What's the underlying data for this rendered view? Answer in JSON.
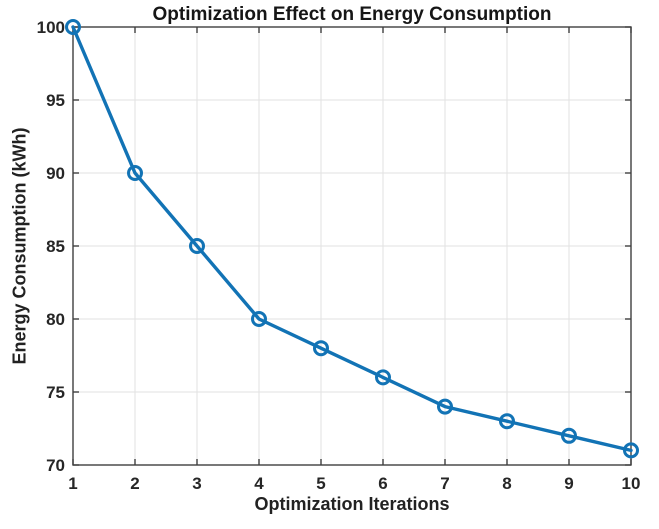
{
  "chart_data": {
    "type": "line",
    "title": "Optimization Effect on Energy Consumption",
    "xlabel": "Optimization Iterations",
    "ylabel": "Energy Consumption (kWh)",
    "x": [
      1,
      2,
      3,
      4,
      5,
      6,
      7,
      8,
      9,
      10
    ],
    "series": [
      {
        "name": "Energy Consumption",
        "values": [
          100,
          90,
          85,
          80,
          78,
          76,
          74,
          73,
          72,
          71
        ]
      }
    ],
    "xlim": [
      1,
      10
    ],
    "ylim": [
      70,
      100
    ],
    "x_ticks": [
      1,
      2,
      3,
      4,
      5,
      6,
      7,
      8,
      9,
      10
    ],
    "y_ticks": [
      70,
      75,
      80,
      85,
      90,
      95,
      100
    ],
    "grid": true,
    "legend": "none",
    "marker": "open-circle",
    "box": true,
    "tick_direction": "in",
    "colors": {
      "line": "#1273b5",
      "grid": "#e2e2e2",
      "axis": "#3f3f3f",
      "tick_text": "#262626",
      "title_text": "#161616",
      "background": "#ffffff"
    }
  }
}
